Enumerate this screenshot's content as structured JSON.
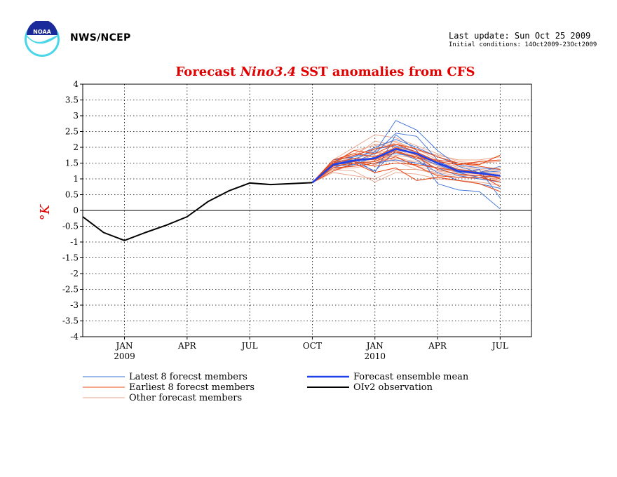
{
  "header": {
    "org": "NWS/NCEP",
    "last_update": "Last update: Sun Oct 25 2009",
    "initial_conditions": "Initial conditions: 14Oct2009-23Oct2009",
    "logo_text": "NOAA"
  },
  "colors": {
    "latest": "#3a6fd8",
    "earliest": "#e84a1a",
    "other": "#e8a48c",
    "mean": "#1f3fe8",
    "obs": "#000000",
    "title": "#e00000"
  },
  "chart_data": {
    "type": "line",
    "title_prefix": "Forecast ",
    "title_italic": "Nino3.4",
    "title_suffix": " SST anomalies from CFS",
    "ylabel": "°K",
    "ylim": [
      -4,
      4
    ],
    "y_ticks": [
      4,
      3.5,
      3,
      2.5,
      2,
      1.5,
      1,
      0.5,
      0,
      -0.5,
      -1,
      -1.5,
      -2,
      -2.5,
      -3,
      -3.5,
      -4
    ],
    "grid": true,
    "x_ticks": [
      {
        "month": 12,
        "label": "JAN",
        "year": "2009"
      },
      {
        "month": 15,
        "label": "APR",
        "year": ""
      },
      {
        "month": 18,
        "label": "JUL",
        "year": ""
      },
      {
        "month": 21,
        "label": "OCT",
        "year": ""
      },
      {
        "month": 24,
        "label": "JAN",
        "year": "2010"
      },
      {
        "month": 27,
        "label": "APR",
        "year": ""
      },
      {
        "month": 30,
        "label": "JUL",
        "year": ""
      }
    ],
    "xlim": [
      10,
      31.5
    ],
    "observation": {
      "name": "OIv2 observation",
      "x": [
        10,
        11,
        12,
        13,
        14,
        15,
        16,
        17,
        18,
        19,
        20,
        21
      ],
      "y": [
        -0.2,
        -0.7,
        -0.95,
        -0.7,
        -0.47,
        -0.2,
        0.28,
        0.62,
        0.87,
        0.82,
        0.85,
        0.88
      ]
    },
    "forecast_x": [
      21,
      22,
      23,
      24,
      25,
      26,
      27,
      28,
      29,
      30
    ],
    "ensemble_mean": {
      "name": "Forecast ensemble mean",
      "y": [
        0.88,
        1.45,
        1.58,
        1.65,
        1.95,
        1.8,
        1.5,
        1.25,
        1.18,
        1.1
      ]
    },
    "latest_members": [
      [
        0.88,
        1.6,
        1.7,
        1.85,
        2.85,
        2.55,
        1.9,
        1.4,
        1.2,
        1.4
      ],
      [
        0.88,
        1.5,
        1.65,
        1.2,
        2.4,
        1.9,
        0.85,
        0.65,
        0.6,
        0.05
      ],
      [
        0.88,
        1.35,
        1.55,
        1.8,
        2.45,
        2.35,
        1.6,
        1.2,
        1.3,
        0.4
      ],
      [
        0.88,
        1.5,
        1.45,
        1.7,
        1.8,
        1.7,
        1.45,
        1.2,
        1.05,
        1.1
      ],
      [
        0.88,
        1.55,
        1.6,
        1.95,
        2.05,
        1.85,
        1.55,
        1.3,
        1.2,
        1.25
      ],
      [
        0.88,
        1.45,
        1.4,
        1.5,
        1.6,
        1.5,
        1.35,
        1.1,
        1.0,
        0.9
      ],
      [
        0.88,
        1.4,
        1.7,
        2.0,
        2.25,
        2.0,
        1.7,
        1.45,
        1.35,
        1.3
      ],
      [
        0.88,
        1.5,
        1.55,
        1.25,
        1.9,
        1.6,
        1.2,
        0.95,
        0.85,
        0.7
      ]
    ],
    "earliest_members": [
      [
        0.88,
        1.5,
        1.9,
        1.8,
        2.1,
        1.95,
        1.7,
        1.5,
        1.45,
        1.75
      ],
      [
        0.88,
        1.6,
        1.8,
        1.7,
        2.0,
        1.75,
        1.5,
        1.3,
        1.2,
        1.0
      ],
      [
        0.88,
        1.45,
        1.55,
        1.4,
        1.5,
        1.45,
        1.35,
        1.25,
        1.15,
        0.75
      ],
      [
        0.88,
        1.35,
        1.4,
        1.5,
        1.7,
        1.4,
        1.1,
        1.05,
        1.05,
        0.9
      ],
      [
        0.88,
        1.55,
        1.75,
        1.95,
        2.1,
        1.85,
        1.55,
        1.45,
        1.55,
        1.6
      ],
      [
        0.88,
        1.4,
        1.5,
        1.55,
        1.85,
        1.7,
        1.3,
        1.15,
        1.1,
        1.05
      ],
      [
        0.88,
        1.25,
        1.5,
        1.2,
        1.35,
        0.95,
        1.05,
        0.95,
        0.85,
        0.6
      ],
      [
        0.88,
        1.5,
        1.65,
        1.6,
        1.9,
        1.65,
        1.6,
        1.5,
        1.4,
        1.3
      ]
    ],
    "other_members": [
      [
        0.88,
        1.3,
        1.45,
        1.55,
        1.75,
        1.65,
        1.45,
        1.3,
        1.25,
        1.2
      ],
      [
        0.88,
        1.6,
        2.0,
        2.4,
        2.3,
        2.05,
        1.8,
        1.55,
        1.5,
        1.6
      ],
      [
        0.88,
        1.2,
        1.1,
        1.0,
        1.3,
        1.3,
        1.15,
        1.05,
        1.0,
        0.95
      ],
      [
        0.88,
        1.45,
        1.6,
        1.9,
        2.15,
        1.95,
        1.6,
        1.35,
        1.3,
        1.25
      ],
      [
        0.88,
        1.35,
        1.35,
        1.45,
        1.65,
        1.55,
        1.35,
        1.2,
        1.15,
        1.05
      ],
      [
        0.88,
        1.55,
        1.8,
        2.1,
        2.0,
        1.85,
        1.55,
        1.45,
        1.5,
        1.55
      ],
      [
        0.88,
        1.3,
        1.25,
        0.9,
        1.2,
        1.15,
        1.0,
        0.95,
        0.9,
        0.8
      ],
      [
        0.88,
        1.5,
        1.7,
        2.2,
        2.05,
        1.75,
        1.4,
        1.25,
        1.2,
        1.15
      ],
      [
        0.88,
        1.4,
        1.55,
        1.75,
        1.6,
        1.4,
        1.25,
        1.15,
        1.05,
        1.0
      ],
      [
        0.88,
        1.45,
        1.9,
        2.05,
        2.2,
        1.9,
        1.75,
        1.6,
        1.6,
        1.7
      ],
      [
        0.88,
        1.25,
        1.45,
        1.65,
        1.55,
        1.3,
        1.2,
        1.1,
        1.1,
        0.95
      ],
      [
        0.88,
        1.35,
        1.65,
        1.8,
        1.95,
        1.7,
        1.5,
        1.4,
        1.35,
        1.3
      ],
      [
        0.88,
        1.5,
        1.6,
        1.45,
        1.85,
        1.6,
        1.45,
        1.3,
        1.25,
        1.2
      ],
      [
        0.88,
        1.4,
        1.5,
        1.85,
        1.7,
        1.5,
        1.35,
        1.25,
        1.2,
        1.35
      ]
    ],
    "legend": {
      "latest": "Latest 8 forecst members",
      "earliest": "Earliest 8 forecst members",
      "other": "Other forecast members",
      "mean": "Forecast ensemble mean",
      "obs": "OIv2 observation"
    }
  }
}
